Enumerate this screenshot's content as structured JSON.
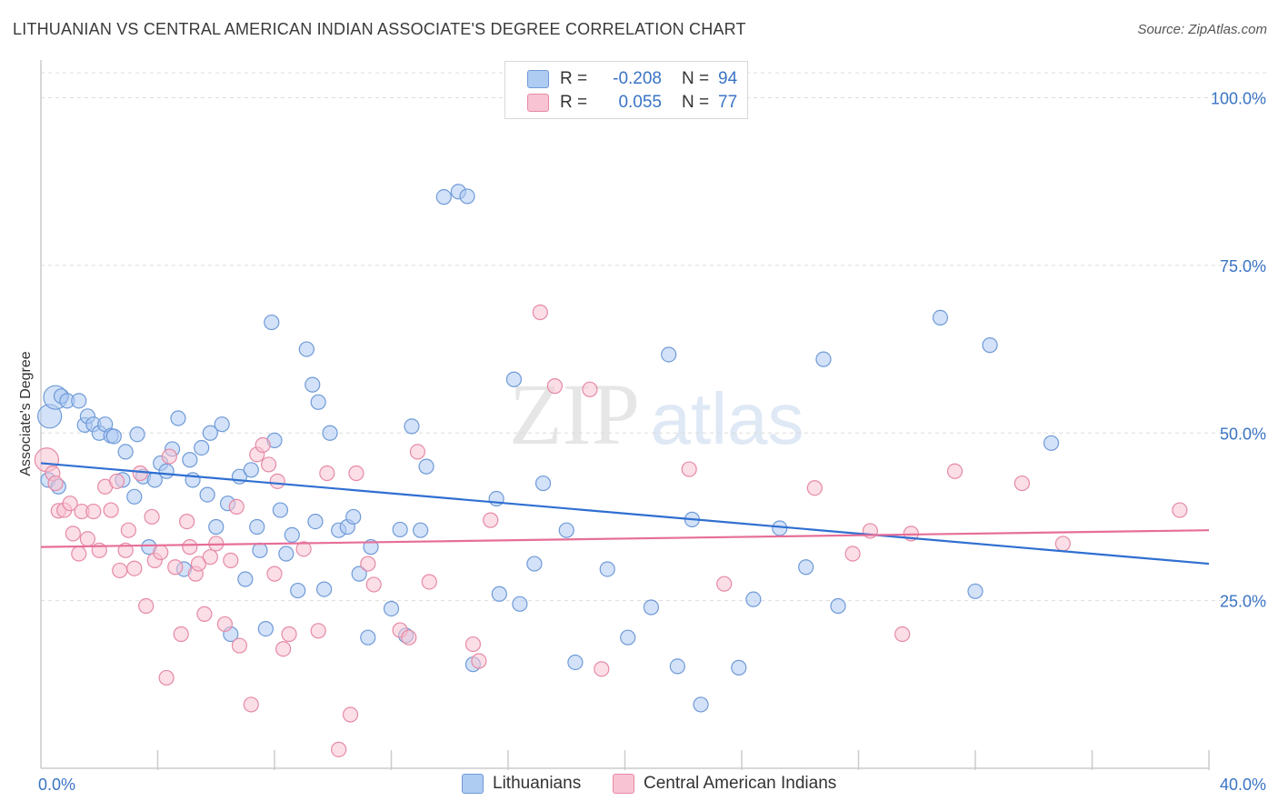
{
  "header": {
    "title": "LITHUANIAN VS CENTRAL AMERICAN INDIAN ASSOCIATE'S DEGREE CORRELATION CHART",
    "source": "Source: ZipAtlas.com"
  },
  "legend": {
    "rows": [
      {
        "r_label": "R =",
        "r_value": "-0.208",
        "n_label": "N =",
        "n_value": "94",
        "color": "#aecbf2",
        "border": "#6f9ad8"
      },
      {
        "r_label": "R =",
        "r_value": "0.055",
        "n_label": "N =",
        "n_value": "77",
        "color": "#f8c3d2",
        "border": "#e68aa6"
      }
    ]
  },
  "bottom_legend": [
    {
      "label": "Lithuanians",
      "color": "#aecbf2",
      "border": "#6f9ad8"
    },
    {
      "label": "Central American Indians",
      "color": "#f8c3d2",
      "border": "#e68aa6"
    }
  ],
  "chart_data": {
    "type": "scatter",
    "ylabel": "Associate's Degree",
    "xlim": [
      0,
      40
    ],
    "ylim": [
      0,
      100
    ],
    "x_ticks": [
      "0.0%",
      "40.0%"
    ],
    "y_ticks": [
      {
        "value": 25,
        "label": "25.0%"
      },
      {
        "value": 50,
        "label": "50.0%"
      },
      {
        "value": 75,
        "label": "75.0%"
      },
      {
        "value": 100,
        "label": "100.0%"
      }
    ],
    "grid": true,
    "series": [
      {
        "name": "Lithuanians",
        "color": "#aecbf2",
        "stroke": "#6f9ad8",
        "trend": {
          "x": [
            0,
            40
          ],
          "y": [
            45.5,
            30.5
          ],
          "color": "#2f6fd1"
        },
        "points": [
          [
            0.3,
            52.5
          ],
          [
            0.5,
            55.3
          ],
          [
            0.7,
            55.5
          ],
          [
            0.9,
            54.8
          ],
          [
            1.3,
            54.8
          ],
          [
            1.5,
            51.2
          ],
          [
            1.6,
            52.5
          ],
          [
            1.8,
            51.3
          ],
          [
            2.0,
            50.0
          ],
          [
            2.2,
            51.3
          ],
          [
            2.4,
            49.6
          ],
          [
            2.5,
            49.5
          ],
          [
            2.8,
            43.0
          ],
          [
            2.9,
            47.2
          ],
          [
            3.2,
            40.5
          ],
          [
            3.3,
            49.8
          ],
          [
            3.5,
            43.5
          ],
          [
            3.7,
            33.0
          ],
          [
            3.9,
            43.0
          ],
          [
            4.1,
            45.5
          ],
          [
            4.3,
            44.3
          ],
          [
            4.5,
            47.6
          ],
          [
            4.7,
            52.2
          ],
          [
            4.9,
            29.7
          ],
          [
            5.1,
            46.0
          ],
          [
            5.2,
            43.0
          ],
          [
            5.5,
            47.8
          ],
          [
            5.7,
            40.8
          ],
          [
            5.8,
            50.0
          ],
          [
            6.0,
            36.0
          ],
          [
            6.2,
            51.3
          ],
          [
            6.4,
            39.5
          ],
          [
            6.5,
            20.0
          ],
          [
            6.8,
            43.5
          ],
          [
            7.0,
            28.2
          ],
          [
            7.2,
            44.5
          ],
          [
            7.4,
            36.0
          ],
          [
            7.5,
            32.5
          ],
          [
            7.7,
            20.8
          ],
          [
            7.9,
            66.5
          ],
          [
            8.0,
            48.9
          ],
          [
            8.2,
            38.5
          ],
          [
            8.4,
            32.0
          ],
          [
            8.6,
            34.8
          ],
          [
            8.8,
            26.5
          ],
          [
            9.1,
            62.5
          ],
          [
            9.3,
            57.2
          ],
          [
            9.4,
            36.8
          ],
          [
            9.5,
            54.6
          ],
          [
            9.7,
            26.7
          ],
          [
            9.9,
            50.0
          ],
          [
            10.2,
            35.5
          ],
          [
            10.5,
            36.0
          ],
          [
            10.7,
            37.5
          ],
          [
            10.9,
            29.0
          ],
          [
            11.2,
            19.5
          ],
          [
            11.3,
            33.0
          ],
          [
            12.0,
            23.8
          ],
          [
            12.3,
            35.6
          ],
          [
            12.5,
            19.8
          ],
          [
            12.7,
            51.0
          ],
          [
            13.0,
            35.5
          ],
          [
            13.2,
            45.0
          ],
          [
            13.8,
            85.2
          ],
          [
            14.3,
            86.0
          ],
          [
            14.6,
            85.3
          ],
          [
            14.8,
            15.5
          ],
          [
            15.6,
            40.2
          ],
          [
            15.7,
            26.0
          ],
          [
            16.2,
            58.0
          ],
          [
            16.4,
            24.5
          ],
          [
            16.9,
            30.5
          ],
          [
            17.2,
            42.5
          ],
          [
            18.0,
            35.5
          ],
          [
            18.3,
            15.8
          ],
          [
            19.4,
            29.7
          ],
          [
            20.1,
            19.5
          ],
          [
            20.9,
            24.0
          ],
          [
            21.5,
            61.7
          ],
          [
            21.8,
            15.2
          ],
          [
            22.3,
            37.1
          ],
          [
            22.6,
            9.5
          ],
          [
            23.9,
            15.0
          ],
          [
            24.4,
            25.2
          ],
          [
            25.3,
            35.8
          ],
          [
            26.2,
            30.0
          ],
          [
            26.8,
            61.0
          ],
          [
            27.3,
            24.2
          ],
          [
            30.8,
            67.2
          ],
          [
            32.0,
            26.4
          ],
          [
            32.5,
            63.1
          ],
          [
            34.6,
            48.5
          ],
          [
            0.25,
            43.0
          ],
          [
            0.6,
            42.0
          ]
        ]
      },
      {
        "name": "Central American Indians",
        "color": "#f8c3d2",
        "stroke": "#e68aa6",
        "trend": {
          "x": [
            0,
            40
          ],
          "y": [
            33.0,
            35.5
          ],
          "color": "#e66f98"
        },
        "points": [
          [
            0.2,
            46.0
          ],
          [
            0.4,
            44.0
          ],
          [
            0.5,
            42.5
          ],
          [
            0.6,
            38.4
          ],
          [
            0.8,
            38.5
          ],
          [
            1.0,
            39.5
          ],
          [
            1.1,
            35.0
          ],
          [
            1.3,
            32.0
          ],
          [
            1.4,
            38.3
          ],
          [
            1.6,
            34.2
          ],
          [
            1.8,
            38.3
          ],
          [
            2.0,
            32.5
          ],
          [
            2.2,
            42.0
          ],
          [
            2.4,
            38.5
          ],
          [
            2.6,
            42.8
          ],
          [
            2.7,
            29.5
          ],
          [
            2.9,
            32.5
          ],
          [
            3.0,
            35.5
          ],
          [
            3.2,
            29.8
          ],
          [
            3.4,
            44.0
          ],
          [
            3.6,
            24.2
          ],
          [
            3.8,
            37.5
          ],
          [
            3.9,
            31.0
          ],
          [
            4.1,
            32.2
          ],
          [
            4.3,
            13.5
          ],
          [
            4.4,
            46.5
          ],
          [
            4.6,
            30.0
          ],
          [
            4.8,
            20.0
          ],
          [
            5.0,
            36.8
          ],
          [
            5.1,
            33.0
          ],
          [
            5.3,
            29.0
          ],
          [
            5.4,
            30.5
          ],
          [
            5.6,
            23.0
          ],
          [
            5.8,
            31.5
          ],
          [
            6.0,
            33.5
          ],
          [
            6.3,
            21.5
          ],
          [
            6.5,
            31.0
          ],
          [
            6.7,
            39.0
          ],
          [
            6.8,
            18.3
          ],
          [
            7.2,
            9.5
          ],
          [
            7.4,
            46.8
          ],
          [
            7.6,
            48.2
          ],
          [
            7.8,
            45.3
          ],
          [
            8.0,
            29.0
          ],
          [
            8.1,
            42.8
          ],
          [
            8.3,
            17.8
          ],
          [
            8.5,
            20.0
          ],
          [
            9.0,
            32.7
          ],
          [
            9.5,
            20.5
          ],
          [
            9.8,
            44.0
          ],
          [
            10.2,
            2.8
          ],
          [
            10.6,
            8.0
          ],
          [
            10.8,
            44.0
          ],
          [
            11.2,
            30.5
          ],
          [
            11.4,
            27.4
          ],
          [
            12.3,
            20.6
          ],
          [
            12.6,
            19.5
          ],
          [
            12.9,
            47.2
          ],
          [
            13.3,
            27.8
          ],
          [
            14.8,
            18.5
          ],
          [
            15.0,
            16.0
          ],
          [
            15.4,
            37.0
          ],
          [
            17.1,
            68.0
          ],
          [
            17.6,
            57.0
          ],
          [
            18.8,
            56.5
          ],
          [
            19.2,
            14.8
          ],
          [
            22.2,
            44.6
          ],
          [
            23.4,
            27.5
          ],
          [
            26.5,
            41.8
          ],
          [
            27.8,
            32.0
          ],
          [
            28.4,
            35.4
          ],
          [
            29.5,
            20.0
          ],
          [
            29.8,
            35.0
          ],
          [
            31.3,
            44.3
          ],
          [
            33.6,
            42.5
          ],
          [
            35.0,
            33.5
          ],
          [
            39.0,
            38.5
          ]
        ]
      }
    ]
  }
}
